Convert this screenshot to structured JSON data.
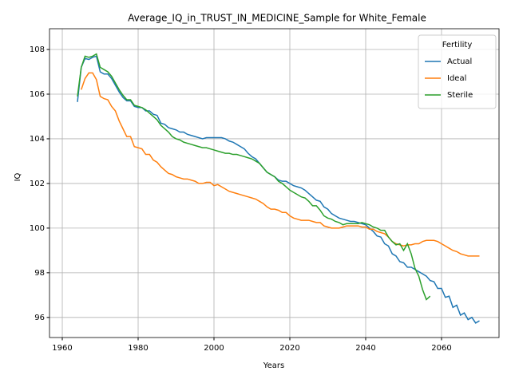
{
  "chart_data": {
    "type": "line",
    "title": "Average_IQ_in_TRUST_IN_MEDICINE_Sample for White_Female",
    "x_label": "Years",
    "y_label": "IQ",
    "legend_title": "Fertility",
    "legend_loc": "upper right",
    "grid": true,
    "xlim": [
      1956.63,
      2075.16
    ],
    "ylim": [
      95.1,
      108.93
    ],
    "xticks": [
      1960,
      1980,
      2000,
      2020,
      2040,
      2060
    ],
    "yticks": [
      96,
      98,
      100,
      102,
      104,
      106,
      108
    ],
    "x": [
      1964,
      1965,
      1966,
      1967,
      1968,
      1969,
      1970,
      1971,
      1972,
      1973,
      1974,
      1975,
      1976,
      1977,
      1978,
      1979,
      1980,
      1981,
      1982,
      1983,
      1984,
      1985,
      1986,
      1987,
      1988,
      1989,
      1990,
      1991,
      1992,
      1993,
      1994,
      1995,
      1996,
      1997,
      1998,
      1999,
      2000,
      2001,
      2002,
      2003,
      2004,
      2005,
      2006,
      2007,
      2008,
      2009,
      2010,
      2011,
      2012,
      2013,
      2014,
      2015,
      2016,
      2017,
      2018,
      2019,
      2020,
      2021,
      2022,
      2023,
      2024,
      2025,
      2026,
      2027,
      2028,
      2029,
      2030,
      2031,
      2032,
      2033,
      2034,
      2035,
      2036,
      2037,
      2038,
      2039,
      2040,
      2041,
      2042,
      2043,
      2044,
      2045,
      2046,
      2047,
      2048,
      2049,
      2050,
      2051,
      2052,
      2053,
      2054,
      2055,
      2056,
      2057,
      2058,
      2059,
      2060,
      2061,
      2062,
      2063,
      2064,
      2065,
      2066,
      2067,
      2068,
      2069,
      2070
    ],
    "series": [
      {
        "name": "Actual",
        "color": "#1f77b4",
        "values": [
          105.65,
          107.2,
          107.6,
          107.55,
          107.65,
          107.7,
          107.0,
          106.9,
          106.9,
          106.7,
          106.4,
          106.1,
          105.85,
          105.7,
          105.7,
          105.45,
          105.4,
          105.4,
          105.25,
          105.25,
          105.1,
          105.05,
          104.7,
          104.65,
          104.5,
          104.45,
          104.4,
          104.3,
          104.3,
          104.2,
          104.15,
          104.1,
          104.05,
          104.0,
          104.05,
          104.05,
          104.05,
          104.05,
          104.05,
          104.0,
          103.9,
          103.85,
          103.75,
          103.65,
          103.55,
          103.35,
          103.2,
          103.1,
          102.9,
          102.7,
          102.5,
          102.4,
          102.3,
          102.15,
          102.1,
          102.1,
          102.0,
          101.9,
          101.85,
          101.8,
          101.7,
          101.55,
          101.4,
          101.25,
          101.2,
          100.95,
          100.85,
          100.65,
          100.55,
          100.45,
          100.4,
          100.35,
          100.3,
          100.3,
          100.25,
          100.2,
          100.15,
          100.0,
          99.85,
          99.65,
          99.6,
          99.3,
          99.2,
          98.85,
          98.75,
          98.5,
          98.45,
          98.25,
          98.25,
          98.15,
          98.05,
          97.95,
          97.85,
          97.65,
          97.6,
          97.3,
          97.3,
          96.9,
          96.95,
          96.45,
          96.55,
          96.1,
          96.2,
          95.9,
          96.0,
          95.75,
          95.85
        ]
      },
      {
        "name": "Ideal",
        "color": "#ff7f0e",
        "values": [
          null,
          106.2,
          106.7,
          106.95,
          106.95,
          106.65,
          105.9,
          105.8,
          105.75,
          105.45,
          105.25,
          104.8,
          104.45,
          104.1,
          104.1,
          103.65,
          103.6,
          103.55,
          103.3,
          103.3,
          103.05,
          102.95,
          102.75,
          102.6,
          102.45,
          102.4,
          102.3,
          102.25,
          102.2,
          102.2,
          102.15,
          102.1,
          102.0,
          102.0,
          102.05,
          102.05,
          101.9,
          101.95,
          101.85,
          101.75,
          101.65,
          101.6,
          101.55,
          101.5,
          101.45,
          101.4,
          101.35,
          101.3,
          101.2,
          101.1,
          100.95,
          100.85,
          100.85,
          100.8,
          100.7,
          100.7,
          100.55,
          100.45,
          100.4,
          100.35,
          100.35,
          100.35,
          100.3,
          100.25,
          100.25,
          100.1,
          100.05,
          100.0,
          100.0,
          100.0,
          100.05,
          100.1,
          100.1,
          100.1,
          100.1,
          100.05,
          100.05,
          99.95,
          99.95,
          99.85,
          99.8,
          99.75,
          99.6,
          99.4,
          99.3,
          99.25,
          99.2,
          99.25,
          99.25,
          99.3,
          99.3,
          99.4,
          99.45,
          99.45,
          99.45,
          99.4,
          99.3,
          99.2,
          99.1,
          99.0,
          98.95,
          98.85,
          98.8,
          98.75,
          98.75,
          98.75,
          98.75
        ]
      },
      {
        "name": "Sterile",
        "color": "#2ca02c",
        "values": [
          105.9,
          107.2,
          107.7,
          107.65,
          107.7,
          107.8,
          107.2,
          107.1,
          107.0,
          106.8,
          106.5,
          106.2,
          105.95,
          105.75,
          105.75,
          105.5,
          105.45,
          105.4,
          105.3,
          105.15,
          105.0,
          104.85,
          104.6,
          104.45,
          104.3,
          104.1,
          104.0,
          103.95,
          103.85,
          103.8,
          103.75,
          103.7,
          103.65,
          103.6,
          103.6,
          103.55,
          103.5,
          103.45,
          103.4,
          103.35,
          103.35,
          103.3,
          103.3,
          103.25,
          103.2,
          103.15,
          103.1,
          103.0,
          102.9,
          102.7,
          102.5,
          102.4,
          102.3,
          102.1,
          102.0,
          101.85,
          101.7,
          101.6,
          101.5,
          101.4,
          101.35,
          101.2,
          101.0,
          101.0,
          100.8,
          100.55,
          100.45,
          100.4,
          100.3,
          100.25,
          100.15,
          100.2,
          100.2,
          100.2,
          100.2,
          100.25,
          100.2,
          100.15,
          100.05,
          100.0,
          99.9,
          99.9,
          99.6,
          99.4,
          99.25,
          99.3,
          99.0,
          99.3,
          98.85,
          98.2,
          97.85,
          97.25,
          96.8,
          96.95,
          null,
          null,
          null,
          null,
          null,
          null,
          null,
          null,
          null,
          null,
          null,
          null,
          null
        ]
      }
    ]
  }
}
